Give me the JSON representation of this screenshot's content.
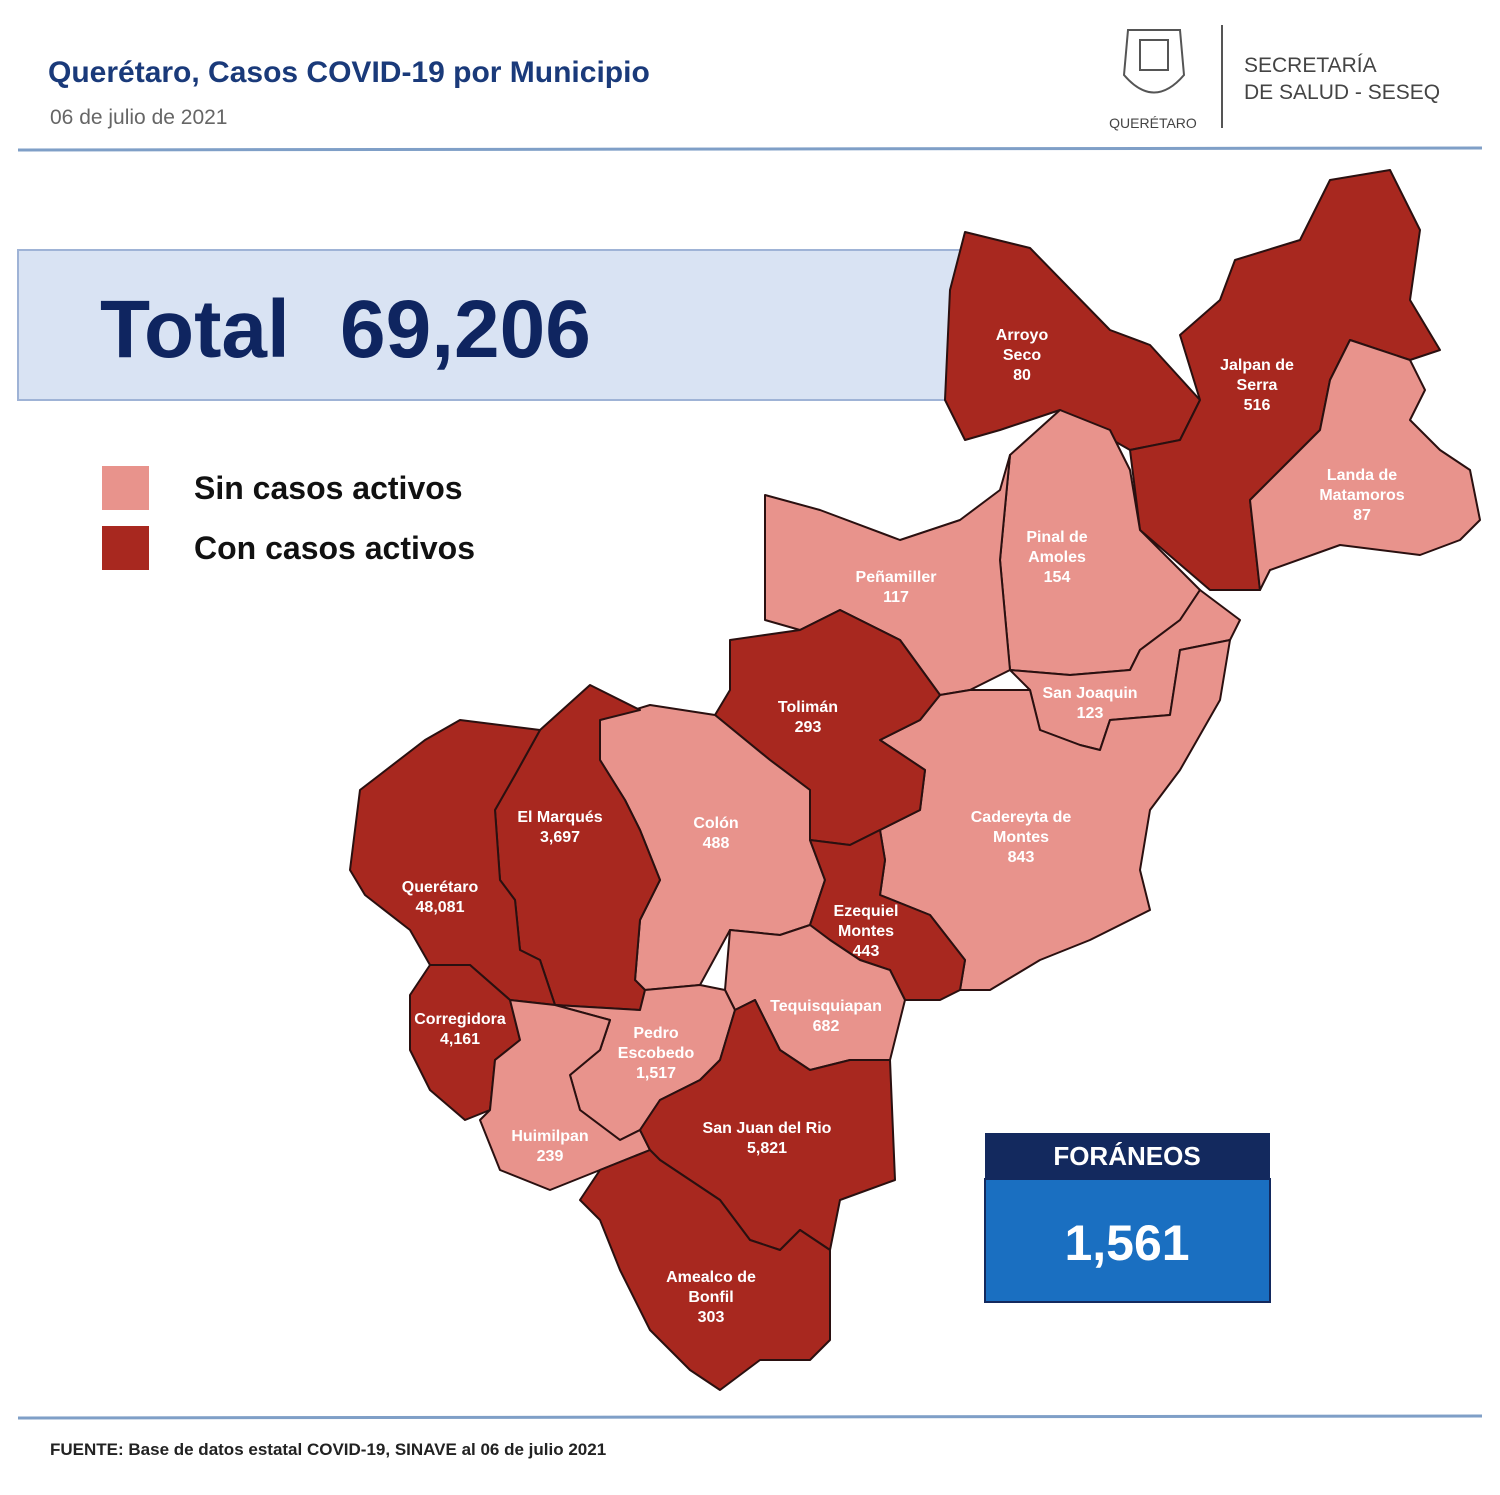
{
  "header": {
    "title": "Querétaro, Casos COVID-19 por Municipio",
    "date": "06 de julio de 2021",
    "logo_text": "QUERÉTARO",
    "agency_line1": "SECRETARÍA",
    "agency_line2": "DE SALUD - SESEQ"
  },
  "total": {
    "label": "Total",
    "value": "69,206"
  },
  "legend": [
    {
      "label": "Sin casos activos",
      "color": "#e8938c"
    },
    {
      "label": "Con casos activos",
      "color": "#a8281f"
    }
  ],
  "municipalities": [
    {
      "name_lines": [
        "Arroyo",
        "Seco"
      ],
      "cases": "80",
      "color": "#a8281f"
    },
    {
      "name_lines": [
        "Jalpan de",
        "Serra"
      ],
      "cases": "516",
      "color": "#a8281f"
    },
    {
      "name_lines": [
        "Landa de",
        "Matamoros"
      ],
      "cases": "87",
      "color": "#e8938c"
    },
    {
      "name_lines": [
        "Pinal de",
        "Amoles"
      ],
      "cases": "154",
      "color": "#e8938c"
    },
    {
      "name_lines": [
        "Peñamiller"
      ],
      "cases": "117",
      "color": "#e8938c"
    },
    {
      "name_lines": [
        "San Joaquin"
      ],
      "cases": "123",
      "color": "#e8938c"
    },
    {
      "name_lines": [
        "Cadereyta de",
        "Montes"
      ],
      "cases": "843",
      "color": "#e8938c"
    },
    {
      "name_lines": [
        "Tolimán"
      ],
      "cases": "293",
      "color": "#a8281f"
    },
    {
      "name_lines": [
        "Colón"
      ],
      "cases": "488",
      "color": "#e8938c"
    },
    {
      "name_lines": [
        "Ezequiel",
        "Montes"
      ],
      "cases": "443",
      "color": "#a8281f"
    },
    {
      "name_lines": [
        "Tequisquiapan"
      ],
      "cases": "682",
      "color": "#e8938c"
    },
    {
      "name_lines": [
        "El  Marqués"
      ],
      "cases": "3,697",
      "color": "#a8281f"
    },
    {
      "name_lines": [
        "Querétaro"
      ],
      "cases": "48,081",
      "color": "#a8281f"
    },
    {
      "name_lines": [
        "Corregidora"
      ],
      "cases": "4,161",
      "color": "#a8281f"
    },
    {
      "name_lines": [
        "Pedro",
        "Escobedo"
      ],
      "cases": "1,517",
      "color": "#e8938c"
    },
    {
      "name_lines": [
        "Huimilpan"
      ],
      "cases": "239",
      "color": "#e8938c"
    },
    {
      "name_lines": [
        "San Juan del Rio"
      ],
      "cases": "5,821",
      "color": "#a8281f"
    },
    {
      "name_lines": [
        "Amealco de",
        "Bonfil"
      ],
      "cases": "303",
      "color": "#a8281f"
    }
  ],
  "foraneos": {
    "label": "FORÁNEOS",
    "value": "1,561"
  },
  "footer": "FUENTE:  Base de datos estatal COVID-19,  SINAVE  al 06 de julio 2021"
}
